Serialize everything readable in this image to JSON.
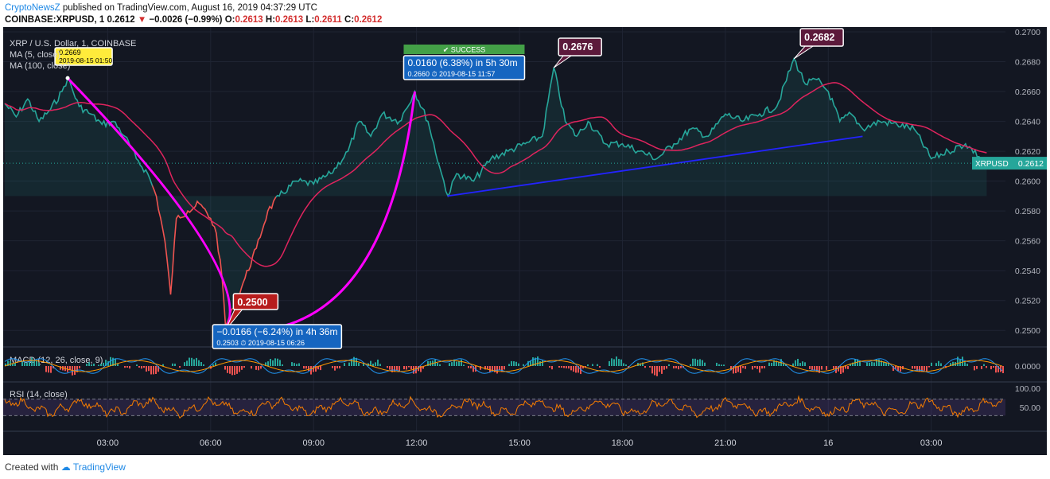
{
  "header": {
    "publisher": "CryptoNewsZ",
    "published_text": "published on TradingView.com, August 16, 2019 04:37:29 UTC",
    "symbol": "COINBASE:XRPUSD, 1",
    "last": "0.2612",
    "arrow": "▼",
    "change": "−0.0026 (−0.99%)",
    "o_label": "O:",
    "o_value": "0.2613",
    "h_label": "H:",
    "h_value": "0.2613",
    "l_label": "L:",
    "l_value": "0.2611",
    "c_label": "C:",
    "c_value": "0.2612"
  },
  "legend": {
    "main": "XRP / U.S. Dollar, 1, COINBASE",
    "ma5": "MA (5, close)",
    "ma100": "MA (100, close)"
  },
  "footer": {
    "prefix": "Created with",
    "brand": "TradingView"
  },
  "colors": {
    "background": "#131722",
    "up": "#26a69a",
    "down": "#ef5350",
    "ma100": "#e0245e",
    "arc": "#ff00ff",
    "trendline": "#2323ff",
    "macd": "#2196f3",
    "signal": "#ff9800",
    "rsi": "#f57c00",
    "label_blue": "#1565c0",
    "label_maroon": "#5c1a3b",
    "success": "#43a047",
    "yellow": "#ffeb3b"
  },
  "chart_data": {
    "type": "line",
    "price_axis": {
      "ylim": [
        0.249,
        0.27
      ],
      "ticks": [
        "0.2700",
        "0.2680",
        "0.2660",
        "0.2640",
        "0.2620",
        "0.2600",
        "0.2580",
        "0.2560",
        "0.2540",
        "0.2520",
        "0.2500"
      ]
    },
    "time_axis": [
      "03:00",
      "06:00",
      "09:00",
      "12:00",
      "15:00",
      "18:00",
      "21:00",
      "16",
      "03:00"
    ],
    "last_price_label": "XRPUSD",
    "last_price_value": "0.2612",
    "price_series": [
      {
        "t": "00:00",
        "p": 0.2652
      },
      {
        "t": "00:20",
        "p": 0.2643
      },
      {
        "t": "00:40",
        "p": 0.2655
      },
      {
        "t": "01:00",
        "p": 0.264
      },
      {
        "t": "01:20",
        "p": 0.2648
      },
      {
        "t": "01:40",
        "p": 0.266
      },
      {
        "t": "01:50",
        "p": 0.2669
      },
      {
        "t": "02:10",
        "p": 0.265
      },
      {
        "t": "02:30",
        "p": 0.2645
      },
      {
        "t": "02:50",
        "p": 0.2638
      },
      {
        "t": "03:10",
        "p": 0.264
      },
      {
        "t": "03:30",
        "p": 0.263
      },
      {
        "t": "03:50",
        "p": 0.2615
      },
      {
        "t": "04:10",
        "p": 0.2605
      },
      {
        "t": "04:25",
        "p": 0.259
      },
      {
        "t": "04:40",
        "p": 0.256
      },
      {
        "t": "04:50",
        "p": 0.2524
      },
      {
        "t": "05:00",
        "p": 0.2575
      },
      {
        "t": "05:20",
        "p": 0.258
      },
      {
        "t": "05:40",
        "p": 0.2585
      },
      {
        "t": "06:00",
        "p": 0.2575
      },
      {
        "t": "06:10",
        "p": 0.2565
      },
      {
        "t": "06:20",
        "p": 0.2535
      },
      {
        "t": "06:26",
        "p": 0.2503
      },
      {
        "t": "06:40",
        "p": 0.2515
      },
      {
        "t": "07:00",
        "p": 0.2535
      },
      {
        "t": "07:20",
        "p": 0.2555
      },
      {
        "t": "07:40",
        "p": 0.258
      },
      {
        "t": "08:00",
        "p": 0.259
      },
      {
        "t": "08:30",
        "p": 0.26
      },
      {
        "t": "09:00",
        "p": 0.2598
      },
      {
        "t": "09:30",
        "p": 0.2605
      },
      {
        "t": "10:00",
        "p": 0.262
      },
      {
        "t": "10:20",
        "p": 0.264
      },
      {
        "t": "10:40",
        "p": 0.263
      },
      {
        "t": "11:00",
        "p": 0.2645
      },
      {
        "t": "11:30",
        "p": 0.264
      },
      {
        "t": "11:57",
        "p": 0.266
      },
      {
        "t": "12:20",
        "p": 0.264
      },
      {
        "t": "12:40",
        "p": 0.261
      },
      {
        "t": "12:55",
        "p": 0.259
      },
      {
        "t": "13:10",
        "p": 0.2605
      },
      {
        "t": "13:40",
        "p": 0.26
      },
      {
        "t": "14:10",
        "p": 0.2615
      },
      {
        "t": "14:40",
        "p": 0.262
      },
      {
        "t": "15:10",
        "p": 0.2625
      },
      {
        "t": "15:40",
        "p": 0.263
      },
      {
        "t": "16:00",
        "p": 0.2676
      },
      {
        "t": "16:20",
        "p": 0.264
      },
      {
        "t": "16:40",
        "p": 0.263
      },
      {
        "t": "17:00",
        "p": 0.264
      },
      {
        "t": "17:30",
        "p": 0.2625
      },
      {
        "t": "18:00",
        "p": 0.2625
      },
      {
        "t": "18:30",
        "p": 0.262
      },
      {
        "t": "19:00",
        "p": 0.2615
      },
      {
        "t": "19:30",
        "p": 0.2625
      },
      {
        "t": "20:00",
        "p": 0.2635
      },
      {
        "t": "20:30",
        "p": 0.263
      },
      {
        "t": "21:00",
        "p": 0.2645
      },
      {
        "t": "21:30",
        "p": 0.264
      },
      {
        "t": "22:00",
        "p": 0.2645
      },
      {
        "t": "22:30",
        "p": 0.265
      },
      {
        "t": "23:00",
        "p": 0.2682
      },
      {
        "t": "23:20",
        "p": 0.2665
      },
      {
        "t": "23:40",
        "p": 0.2668
      },
      {
        "t": "00:00",
        "p": 0.266
      },
      {
        "t": "00:20",
        "p": 0.264
      },
      {
        "t": "00:40",
        "p": 0.2645
      },
      {
        "t": "01:00",
        "p": 0.2635
      },
      {
        "t": "01:30",
        "p": 0.264
      },
      {
        "t": "02:00",
        "p": 0.2638
      },
      {
        "t": "02:30",
        "p": 0.2635
      },
      {
        "t": "03:00",
        "p": 0.2615
      },
      {
        "t": "03:30",
        "p": 0.262
      },
      {
        "t": "04:00",
        "p": 0.2625
      },
      {
        "t": "04:37",
        "p": 0.2612
      }
    ],
    "annotations": {
      "high1": "0.2676",
      "high2": "0.2682",
      "low": "0.2500",
      "start_price": "0.2669",
      "start_time": "2019-08-15 01:50",
      "down_move": "−0.0166 (−6.24%) in 4h 36m",
      "down_detail_price": "0.2503",
      "down_detail_time": "2019-08-15  06:26",
      "success": "SUCCESS",
      "up_move": "0.0160 (6.38%) in 5h 30m",
      "up_detail_price": "0.2660",
      "up_detail_time": "2019-08-15  11:57"
    },
    "macd": {
      "label": "MACD (12, 26, close, 9)",
      "ticks": [
        "0.0000"
      ]
    },
    "rsi": {
      "label": "RSI (14, close)",
      "ticks": [
        "100.00",
        "50.00"
      ],
      "upper_band": 70,
      "lower_band": 30
    }
  }
}
